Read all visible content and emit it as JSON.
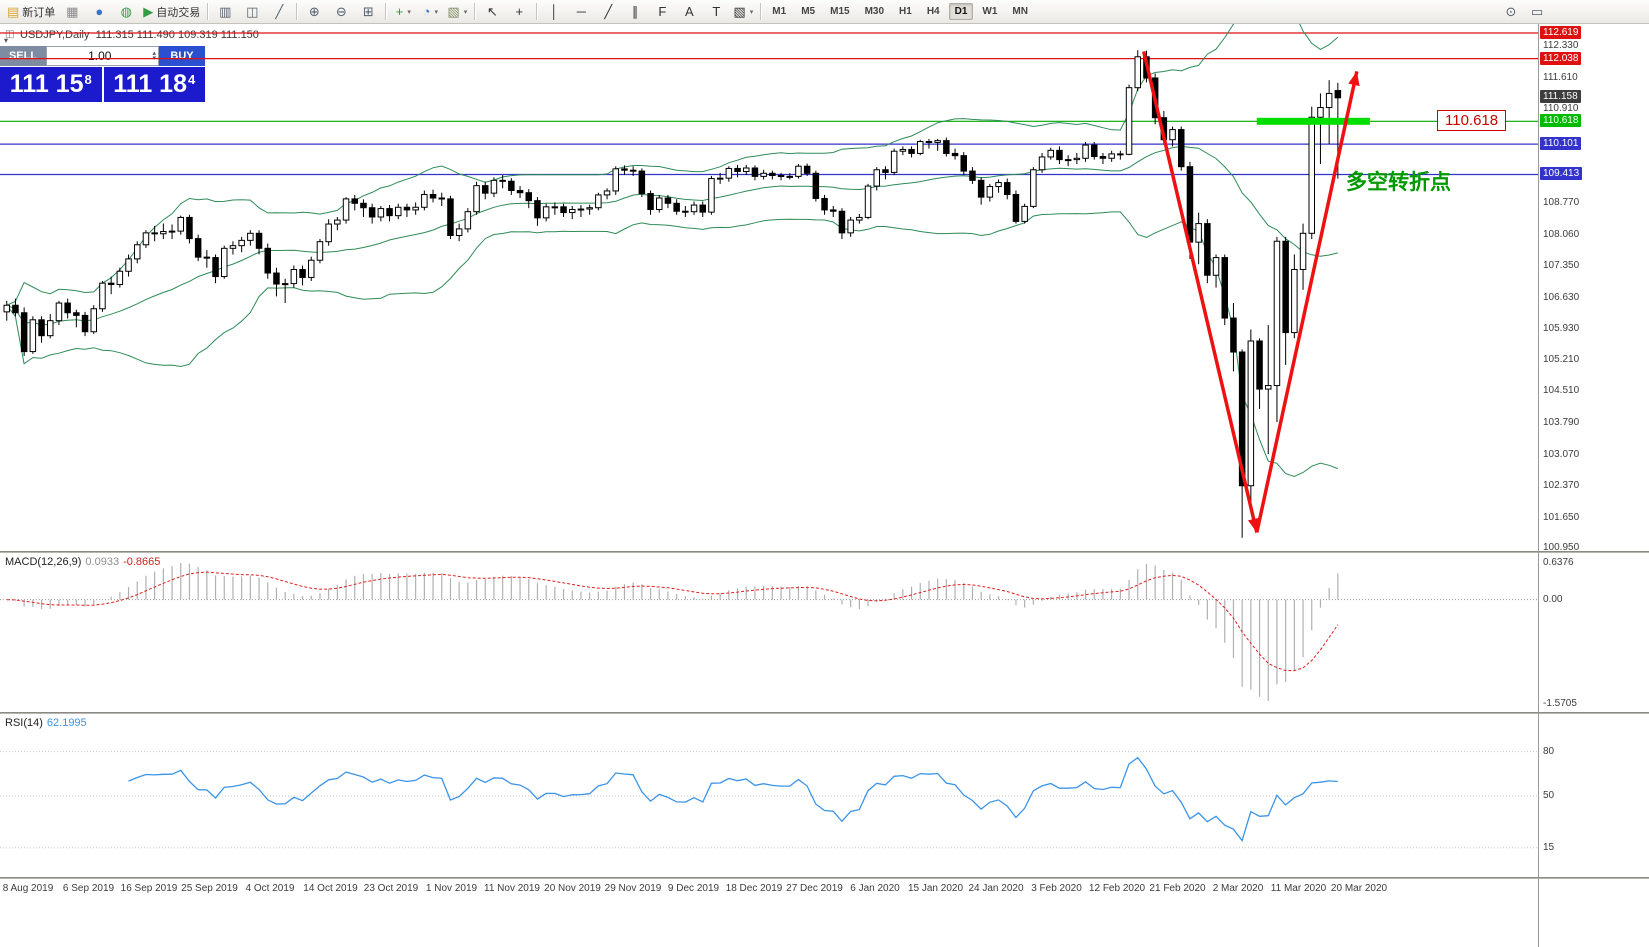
{
  "toolbar": {
    "items": [
      {
        "name": "new-order-button",
        "glyph": "▤",
        "color": "#d9a62e",
        "label": "新订单"
      },
      {
        "name": "chart-window-icon",
        "glyph": "▦",
        "color": "#8a8a8a"
      },
      {
        "name": "accounts-icon",
        "glyph": "●",
        "color": "#3a76c8"
      },
      {
        "name": "community-icon",
        "glyph": "◍",
        "color": "#2f9e44"
      },
      {
        "name": "autotrading-button",
        "glyph": "▶",
        "color": "#2f9e44",
        "label": "自动交易"
      },
      {
        "sep": true
      },
      {
        "name": "bar-chart-icon",
        "glyph": "▥",
        "color": "#556070"
      },
      {
        "name": "candlestick-chart-icon",
        "glyph": "◫",
        "color": "#556070"
      },
      {
        "name": "line-chart-icon",
        "glyph": "╱",
        "color": "#556070"
      },
      {
        "sep": true
      },
      {
        "name": "zoom-in-icon",
        "glyph": "⊕",
        "color": "#556070"
      },
      {
        "name": "zoom-out-icon",
        "glyph": "⊖",
        "color": "#556070"
      },
      {
        "name": "grid-icon",
        "glyph": "⊞",
        "color": "#556070"
      },
      {
        "sep": true
      },
      {
        "name": "indicators-icon",
        "glyph": "+",
        "color": "#1f9e3f",
        "caret": true
      },
      {
        "name": "clock-icon",
        "glyph": "◔",
        "color": "#3a76c8",
        "caret": true
      },
      {
        "name": "templates-icon",
        "glyph": "▧",
        "color": "#7d8a60",
        "caret": true
      },
      {
        "sep": true
      },
      {
        "name": "cursor-icon",
        "glyph": "↖",
        "color": "#333333"
      },
      {
        "name": "crosshair-icon",
        "glyph": "+",
        "color": "#333333"
      },
      {
        "sep": true
      },
      {
        "name": "vertical-line-icon",
        "glyph": "│",
        "color": "#333333"
      },
      {
        "name": "horizontal-line-icon",
        "glyph": "─",
        "color": "#333333"
      },
      {
        "name": "trendline-icon",
        "glyph": "╱",
        "color": "#333333"
      },
      {
        "name": "channel-icon",
        "glyph": "∥",
        "color": "#333333"
      },
      {
        "name": "fibonacci-icon",
        "glyph": "F",
        "color": "#333333"
      },
      {
        "name": "text-icon",
        "glyph": "A",
        "color": "#333333"
      },
      {
        "name": "label-icon",
        "glyph": "T",
        "color": "#333333"
      },
      {
        "name": "shapes-icon",
        "glyph": "▧",
        "color": "#333333",
        "caret": true
      },
      {
        "sep": true
      }
    ],
    "timeframes": [
      "M1",
      "M5",
      "M15",
      "M30",
      "H1",
      "H4",
      "D1",
      "W1",
      "MN"
    ],
    "active_timeframe": "D1",
    "right_items": [
      {
        "name": "find-symbol-icon",
        "glyph": "⊙",
        "color": "#556070"
      },
      {
        "name": "select-box-icon",
        "glyph": "▭",
        "color": "#556070"
      }
    ]
  },
  "icons": {
    "spin_up": "▴",
    "spin_down": "▾",
    "symbol_icon": "◫",
    "collapse": "▾"
  },
  "symbol_info": "USDJPY,Daily  111.315 111.490 109.319 111.150",
  "trade_panel": {
    "sell_label": "SELL",
    "buy_label": "BUY",
    "volume": "1.00",
    "sell_price_big": "111 15",
    "sell_price_sup": "8",
    "buy_price_big": "111 18",
    "buy_price_sup": "4"
  },
  "price_scale": {
    "plain_labels": [
      "112.330",
      "111.610",
      "110.910",
      "108.770",
      "108.060",
      "107.350",
      "106.630",
      "105.930",
      "105.210",
      "104.510",
      "103.790",
      "103.070",
      "102.370",
      "101.650",
      "100.950"
    ],
    "badges": [
      {
        "text": "112.619",
        "bg": "#dd1111"
      },
      {
        "text": "112.038",
        "bg": "#dd1111"
      },
      {
        "text": "111.158",
        "bg": "#3d3d3d"
      },
      {
        "text": "110.618",
        "bg": "#00bb00"
      },
      {
        "text": "110.101",
        "bg": "#3333cc"
      },
      {
        "text": "109.413",
        "bg": "#3333cc"
      }
    ],
    "lines": [
      {
        "price": "112.619",
        "color": "#dd1111"
      },
      {
        "price": "112.038",
        "color": "#dd1111"
      },
      {
        "price": "110.618",
        "color": "#00aa00"
      },
      {
        "price": "110.101",
        "color": "#3333cc"
      },
      {
        "price": "109.413",
        "color": "#3333cc"
      }
    ]
  },
  "chart_data": {
    "type": "candlestick",
    "symbol": "USDJPY",
    "period": "Daily",
    "y_range": [
      100.95,
      112.82
    ],
    "indicators": {
      "bollinger_period": 20,
      "bollinger_deviation": 2,
      "macd": "12,26,9",
      "rsi_period": 14
    },
    "x_labels": [
      "8 Aug 2019",
      "6 Sep 2019",
      "16 Sep 2019",
      "25 Sep 2019",
      "4 Oct 2019",
      "14 Oct 2019",
      "23 Oct 2019",
      "1 Nov 2019",
      "11 Nov 2019",
      "20 Nov 2019",
      "29 Nov 2019",
      "9 Dec 2019",
      "18 Dec 2019",
      "27 Dec 2019",
      "6 Jan 2020",
      "15 Jan 2020",
      "24 Jan 2020",
      "3 Feb 2020",
      "12 Feb 2020",
      "21 Feb 2020",
      "2 Mar 2020",
      "11 Mar 2020",
      "20 Mar 2020"
    ],
    "ohlc": [
      [
        106.3,
        106.55,
        106.1,
        106.45
      ],
      [
        106.45,
        106.6,
        106.2,
        106.28
      ],
      [
        106.28,
        106.4,
        105.3,
        105.4
      ],
      [
        105.4,
        106.2,
        105.35,
        106.12
      ],
      [
        106.12,
        106.2,
        105.6,
        105.76
      ],
      [
        105.76,
        106.25,
        105.7,
        106.1
      ],
      [
        106.1,
        106.55,
        106.0,
        106.5
      ],
      [
        106.5,
        106.6,
        106.15,
        106.28
      ],
      [
        106.28,
        106.35,
        105.95,
        106.22
      ],
      [
        106.22,
        106.3,
        105.75,
        105.85
      ],
      [
        105.85,
        106.45,
        105.8,
        106.37
      ],
      [
        106.37,
        107.0,
        106.3,
        106.95
      ],
      [
        106.95,
        107.1,
        106.7,
        106.92
      ],
      [
        106.92,
        107.3,
        106.85,
        107.22
      ],
      [
        107.22,
        107.6,
        107.1,
        107.5
      ],
      [
        107.5,
        107.9,
        107.4,
        107.82
      ],
      [
        107.82,
        108.15,
        107.75,
        108.09
      ],
      [
        108.09,
        108.25,
        107.9,
        108.07
      ],
      [
        108.07,
        108.3,
        107.95,
        108.12
      ],
      [
        108.12,
        108.28,
        107.95,
        108.13
      ],
      [
        108.13,
        108.48,
        108.05,
        108.44
      ],
      [
        108.44,
        108.5,
        107.85,
        107.96
      ],
      [
        107.96,
        108.05,
        107.45,
        107.54
      ],
      [
        107.54,
        107.7,
        107.3,
        107.53
      ],
      [
        107.53,
        107.6,
        106.95,
        107.1
      ],
      [
        107.1,
        107.8,
        107.05,
        107.74
      ],
      [
        107.74,
        107.9,
        107.6,
        107.8
      ],
      [
        107.8,
        108.0,
        107.65,
        107.92
      ],
      [
        107.92,
        108.15,
        107.8,
        108.08
      ],
      [
        108.08,
        108.15,
        107.6,
        107.74
      ],
      [
        107.74,
        107.85,
        107.05,
        107.18
      ],
      [
        107.18,
        107.3,
        106.65,
        106.93
      ],
      [
        106.93,
        107.05,
        106.5,
        106.94
      ],
      [
        106.94,
        107.35,
        106.85,
        107.26
      ],
      [
        107.26,
        107.35,
        106.9,
        107.08
      ],
      [
        107.08,
        107.55,
        107.0,
        107.47
      ],
      [
        107.47,
        107.95,
        107.4,
        107.89
      ],
      [
        107.89,
        108.4,
        107.8,
        108.29
      ],
      [
        108.29,
        108.45,
        108.15,
        108.38
      ],
      [
        108.38,
        108.9,
        108.3,
        108.86
      ],
      [
        108.86,
        108.95,
        108.6,
        108.76
      ],
      [
        108.76,
        108.85,
        108.45,
        108.66
      ],
      [
        108.66,
        108.75,
        108.3,
        108.45
      ],
      [
        108.45,
        108.7,
        108.35,
        108.64
      ],
      [
        108.64,
        108.72,
        108.35,
        108.48
      ],
      [
        108.48,
        108.75,
        108.4,
        108.67
      ],
      [
        108.67,
        108.75,
        108.45,
        108.61
      ],
      [
        108.61,
        108.78,
        108.5,
        108.67
      ],
      [
        108.67,
        109.05,
        108.6,
        108.96
      ],
      [
        108.96,
        109.07,
        108.78,
        108.88
      ],
      [
        108.88,
        109.0,
        108.7,
        108.86
      ],
      [
        108.86,
        108.93,
        107.95,
        108.03
      ],
      [
        108.03,
        108.3,
        107.9,
        108.18
      ],
      [
        108.18,
        108.65,
        108.1,
        108.57
      ],
      [
        108.57,
        109.25,
        108.5,
        109.16
      ],
      [
        109.16,
        109.25,
        108.85,
        108.99
      ],
      [
        108.99,
        109.35,
        108.9,
        109.28
      ],
      [
        109.28,
        109.4,
        109.1,
        109.26
      ],
      [
        109.26,
        109.33,
        108.95,
        109.05
      ],
      [
        109.05,
        109.15,
        108.88,
        109.0
      ],
      [
        109.0,
        109.08,
        108.65,
        108.82
      ],
      [
        108.82,
        108.9,
        108.25,
        108.43
      ],
      [
        108.43,
        108.75,
        108.35,
        108.68
      ],
      [
        108.68,
        108.78,
        108.5,
        108.68
      ],
      [
        108.68,
        108.75,
        108.45,
        108.55
      ],
      [
        108.55,
        108.7,
        108.4,
        108.62
      ],
      [
        108.62,
        108.72,
        108.45,
        108.63
      ],
      [
        108.63,
        108.73,
        108.5,
        108.66
      ],
      [
        108.66,
        109.0,
        108.6,
        108.95
      ],
      [
        108.95,
        109.1,
        108.85,
        109.04
      ],
      [
        109.04,
        109.6,
        108.95,
        109.54
      ],
      [
        109.54,
        109.62,
        109.4,
        109.51
      ],
      [
        109.51,
        109.6,
        109.38,
        109.49
      ],
      [
        109.49,
        109.55,
        108.9,
        108.98
      ],
      [
        108.98,
        109.05,
        108.5,
        108.62
      ],
      [
        108.62,
        108.95,
        108.55,
        108.88
      ],
      [
        108.88,
        108.95,
        108.65,
        108.76
      ],
      [
        108.76,
        108.85,
        108.5,
        108.58
      ],
      [
        108.58,
        108.7,
        108.45,
        108.57
      ],
      [
        108.57,
        108.8,
        108.5,
        108.72
      ],
      [
        108.72,
        108.8,
        108.45,
        108.56
      ],
      [
        108.56,
        109.38,
        108.5,
        109.32
      ],
      [
        109.32,
        109.45,
        109.2,
        109.33
      ],
      [
        109.33,
        109.6,
        109.25,
        109.55
      ],
      [
        109.55,
        109.63,
        109.35,
        109.48
      ],
      [
        109.48,
        109.63,
        109.4,
        109.56
      ],
      [
        109.56,
        109.62,
        109.28,
        109.37
      ],
      [
        109.37,
        109.52,
        109.3,
        109.44
      ],
      [
        109.44,
        109.5,
        109.3,
        109.39
      ],
      [
        109.39,
        109.45,
        109.28,
        109.37
      ],
      [
        109.37,
        109.44,
        109.3,
        109.37
      ],
      [
        109.37,
        109.65,
        109.32,
        109.6
      ],
      [
        109.6,
        109.66,
        109.38,
        109.44
      ],
      [
        109.44,
        109.5,
        108.8,
        108.87
      ],
      [
        108.87,
        108.95,
        108.5,
        108.61
      ],
      [
        108.61,
        108.7,
        108.45,
        108.58
      ],
      [
        108.58,
        108.65,
        107.95,
        108.09
      ],
      [
        108.09,
        108.45,
        108.0,
        108.38
      ],
      [
        108.38,
        108.52,
        108.3,
        108.44
      ],
      [
        108.44,
        109.2,
        108.4,
        109.15
      ],
      [
        109.15,
        109.58,
        109.05,
        109.52
      ],
      [
        109.52,
        109.6,
        109.3,
        109.46
      ],
      [
        109.46,
        110.0,
        109.4,
        109.94
      ],
      [
        109.94,
        110.05,
        109.85,
        109.98
      ],
      [
        109.98,
        110.05,
        109.8,
        109.89
      ],
      [
        109.89,
        110.2,
        109.85,
        110.16
      ],
      [
        110.16,
        110.22,
        110.0,
        110.14
      ],
      [
        110.14,
        110.22,
        109.95,
        110.18
      ],
      [
        110.18,
        110.25,
        109.82,
        109.89
      ],
      [
        109.89,
        110.0,
        109.75,
        109.84
      ],
      [
        109.84,
        109.92,
        109.4,
        109.49
      ],
      [
        109.49,
        109.58,
        109.2,
        109.28
      ],
      [
        109.28,
        109.35,
        108.73,
        108.9
      ],
      [
        108.9,
        109.2,
        108.8,
        109.14
      ],
      [
        109.14,
        109.3,
        109.0,
        109.23
      ],
      [
        109.23,
        109.32,
        108.85,
        108.96
      ],
      [
        108.96,
        109.05,
        108.3,
        108.35
      ],
      [
        108.35,
        108.75,
        108.3,
        108.69
      ],
      [
        108.69,
        109.58,
        108.65,
        109.52
      ],
      [
        109.52,
        109.9,
        109.45,
        109.81
      ],
      [
        109.81,
        110.02,
        109.75,
        109.96
      ],
      [
        109.96,
        110.05,
        109.65,
        109.75
      ],
      [
        109.75,
        109.85,
        109.6,
        109.75
      ],
      [
        109.75,
        109.9,
        109.65,
        109.78
      ],
      [
        109.78,
        110.15,
        109.7,
        110.08
      ],
      [
        110.08,
        110.15,
        109.75,
        109.82
      ],
      [
        109.82,
        109.9,
        109.65,
        109.78
      ],
      [
        109.78,
        109.95,
        109.7,
        109.88
      ],
      [
        109.88,
        109.95,
        109.75,
        109.87
      ],
      [
        109.87,
        111.45,
        109.85,
        111.38
      ],
      [
        111.38,
        112.23,
        111.3,
        112.08
      ],
      [
        112.08,
        112.22,
        111.5,
        111.6
      ],
      [
        111.6,
        111.7,
        110.55,
        110.7
      ],
      [
        110.7,
        110.85,
        110.1,
        110.2
      ],
      [
        110.2,
        110.5,
        110.05,
        110.43
      ],
      [
        110.43,
        110.5,
        109.5,
        109.59
      ],
      [
        109.59,
        109.7,
        107.5,
        107.88
      ],
      [
        107.88,
        108.55,
        107.38,
        108.3
      ],
      [
        108.3,
        108.4,
        106.95,
        107.13
      ],
      [
        107.13,
        107.6,
        106.85,
        107.53
      ],
      [
        107.53,
        107.6,
        106.0,
        106.16
      ],
      [
        106.16,
        106.5,
        104.95,
        105.39
      ],
      [
        105.39,
        105.45,
        101.18,
        102.36
      ],
      [
        102.36,
        105.9,
        102.0,
        105.64
      ],
      [
        105.64,
        105.7,
        104.1,
        104.55
      ],
      [
        104.55,
        106.0,
        103.08,
        104.63
      ],
      [
        104.63,
        108.0,
        103.8,
        107.9
      ],
      [
        107.9,
        108.0,
        105.1,
        105.83
      ],
      [
        105.83,
        107.6,
        105.7,
        107.26
      ],
      [
        107.26,
        108.3,
        106.8,
        108.08
      ],
      [
        108.08,
        110.95,
        107.95,
        110.71
      ],
      [
        110.71,
        111.25,
        109.65,
        110.93
      ],
      [
        110.93,
        111.55,
        110.1,
        111.25
      ],
      [
        111.315,
        111.49,
        109.319,
        111.15
      ]
    ]
  },
  "macd_panel": {
    "label": "MACD(12,26,9)",
    "value_main": "0.0933",
    "value_signal": "-0.8665",
    "axis_labels": [
      "0.6376",
      "0.00",
      "-1.5705"
    ],
    "histogram_color": "#b0b0b0",
    "signal_color": "#e02020"
  },
  "rsi_panel": {
    "label": "RSI(14)",
    "value": "62.1995",
    "axis_labels": [
      "80",
      "50",
      "15"
    ],
    "axis_values": [
      80,
      50,
      15
    ],
    "line_color": "#3b94e8"
  },
  "annotations": {
    "text": "多空转折点",
    "text_color": "#009900",
    "arrow_color": "#ee1111",
    "arrow_down": {
      "from_index": 131,
      "from_price": 112.2,
      "to_index": 144,
      "to_price": 101.3
    },
    "arrow_up": {
      "from_index": 144,
      "from_price": 101.3,
      "to_index": 155.5,
      "to_price": 111.75
    },
    "highlight": {
      "from_index": 144,
      "to_index": 157,
      "price": 110.618,
      "color": "#00dd00"
    },
    "price_label": "110.618"
  },
  "colors": {
    "bollinger": "#2e8b57",
    "candle_up": "#ffffff",
    "candle_down": "#000000",
    "candle_border": "#000000"
  }
}
